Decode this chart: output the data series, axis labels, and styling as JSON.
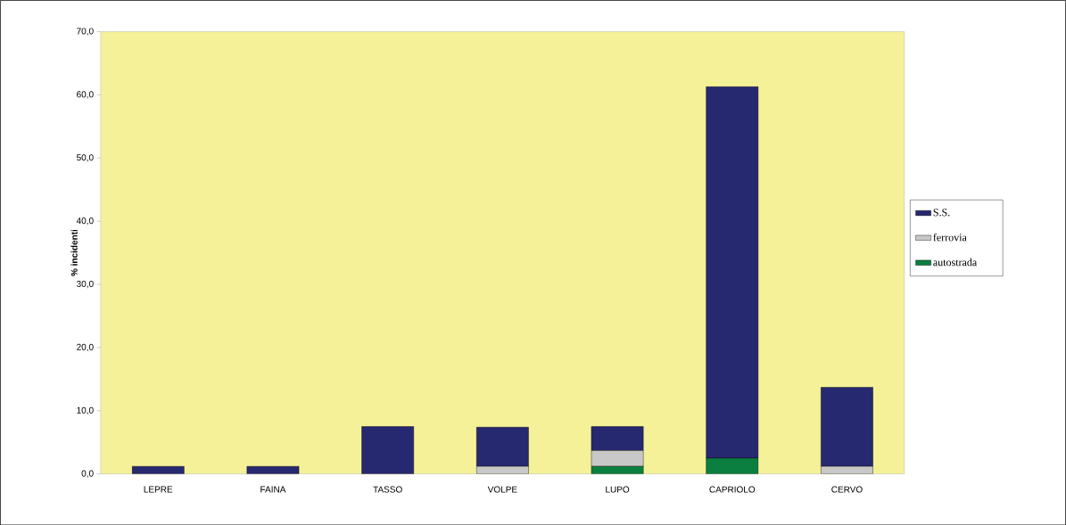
{
  "chart_data": {
    "type": "bar",
    "stacked": true,
    "ylabel": "% incidenti",
    "categories": [
      "LEPRE",
      "FAINA",
      "TASSO",
      "VOLPE",
      "LUPO",
      "CAPRIOLO",
      "CERVO"
    ],
    "series": [
      {
        "name": "autostrada",
        "color": "#0b7f3f",
        "values": [
          0,
          0,
          0,
          0,
          1.2,
          2.5,
          0
        ]
      },
      {
        "name": "ferrovia",
        "color": "#c8c8c8",
        "values": [
          0,
          0,
          0,
          1.2,
          2.5,
          0,
          1.2
        ]
      },
      {
        "name": "S.S.",
        "color": "#262870",
        "values": [
          1.2,
          1.2,
          7.5,
          6.2,
          3.8,
          58.8,
          12.5
        ]
      }
    ],
    "ylim": [
      0,
      70
    ],
    "yticks": [
      {
        "value": 0,
        "label": "0,0"
      },
      {
        "value": 10,
        "label": "10,0"
      },
      {
        "value": 20,
        "label": "20,0"
      },
      {
        "value": 30,
        "label": "30,0"
      },
      {
        "value": 40,
        "label": "40,0"
      },
      {
        "value": 50,
        "label": "50,0"
      },
      {
        "value": 60,
        "label": "60,0"
      },
      {
        "value": 70,
        "label": "70,0"
      }
    ],
    "legend": "right",
    "grid": false
  }
}
